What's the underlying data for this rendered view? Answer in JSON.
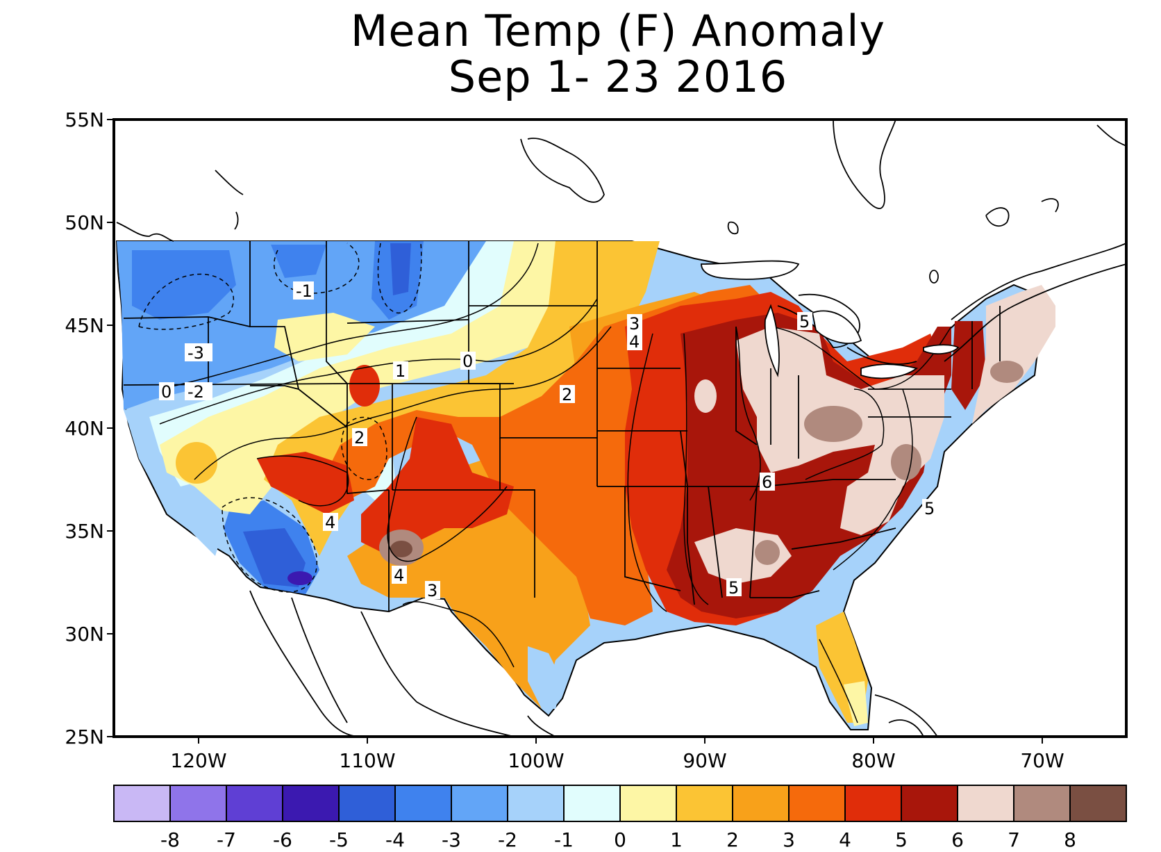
{
  "title": {
    "line1": "Mean Temp (F) Anomaly",
    "line2": "Sep 1- 23 2016"
  },
  "axes": {
    "lat_labels": [
      "55N",
      "50N",
      "45N",
      "40N",
      "35N",
      "30N",
      "25N"
    ],
    "lon_labels": [
      "120W",
      "110W",
      "100W",
      "90W",
      "80W",
      "70W"
    ]
  },
  "colorbar": {
    "colors": [
      "#c9b8f5",
      "#8f74ea",
      "#5f3fd4",
      "#3b19b0",
      "#2f5fd8",
      "#3f82ee",
      "#62a5f7",
      "#a6d2fa",
      "#e1fdfd",
      "#fdf6a5",
      "#fbc434",
      "#f8a11a",
      "#f56a0c",
      "#e02d0a",
      "#a8160b",
      "#efd8cf",
      "#b08a7e",
      "#7a4f42"
    ],
    "tick_labels": [
      "-8",
      "-7",
      "-6",
      "-5",
      "-4",
      "-3",
      "-2",
      "-1",
      "0",
      "1",
      "2",
      "3",
      "4",
      "5",
      "6",
      "7",
      "8"
    ]
  },
  "contour_labels": [
    "-1",
    "-3",
    "0",
    "-2",
    "1",
    "0",
    "2",
    "3",
    "4",
    "5",
    "2",
    "4",
    "4",
    "3",
    "6",
    "5",
    "5"
  ]
}
